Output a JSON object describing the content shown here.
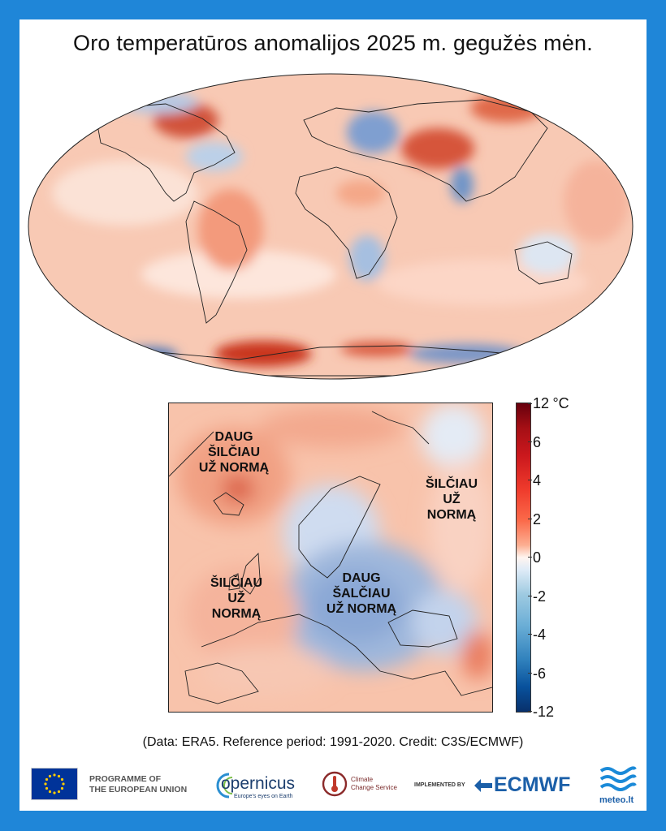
{
  "title": "Oro temperatūros anomalijos 2025 m. gegužės mėn.",
  "europe_labels": {
    "nw": [
      "DAUG",
      "ŠILČIAU",
      "UŽ NORMĄ"
    ],
    "ne": [
      "ŠILČIAU",
      "UŽ",
      "NORMĄ"
    ],
    "w": [
      "ŠILČIAU",
      "UŽ",
      "NORMĄ"
    ],
    "center": [
      "DAUG",
      "ŠALČIAU",
      "UŽ NORMĄ"
    ]
  },
  "colorbar": {
    "unit": "°C",
    "ticks": [
      "12",
      "6",
      "4",
      "2",
      "0",
      "-2",
      "-4",
      "-6",
      "-12"
    ],
    "colors": {
      "max": "#67000d",
      "warm": "#ef3b2c",
      "neutral": "#fff5f0",
      "cool": "#6baed6",
      "min": "#08306b"
    }
  },
  "footer": {
    "credit": "(Data: ERA5.  Reference period: 1991-2020.  Credit: C3S/ECMWF)",
    "eu_line1": "PROGRAMME OF",
    "eu_line2": "THE EUROPEAN UNION",
    "copernicus_name": "opernicus",
    "copernicus_tag": "Europe's eyes on Earth",
    "ccs_line1": "Climate",
    "ccs_line2": "Change Service",
    "implemented_by": "IMPLEMENTED BY",
    "ecmwf": "ECMWF",
    "meteo": "meteo.lt"
  },
  "logos": [
    "eu-flag-icon",
    "copernicus-logo-icon",
    "thermometer-icon",
    "ecmwf-arrows-icon",
    "meteo-waves-icon"
  ],
  "colors": {
    "frame": "#1f86d8",
    "warm_anomaly": "#ef7b5b",
    "cold_anomaly": "#6f94c8"
  }
}
